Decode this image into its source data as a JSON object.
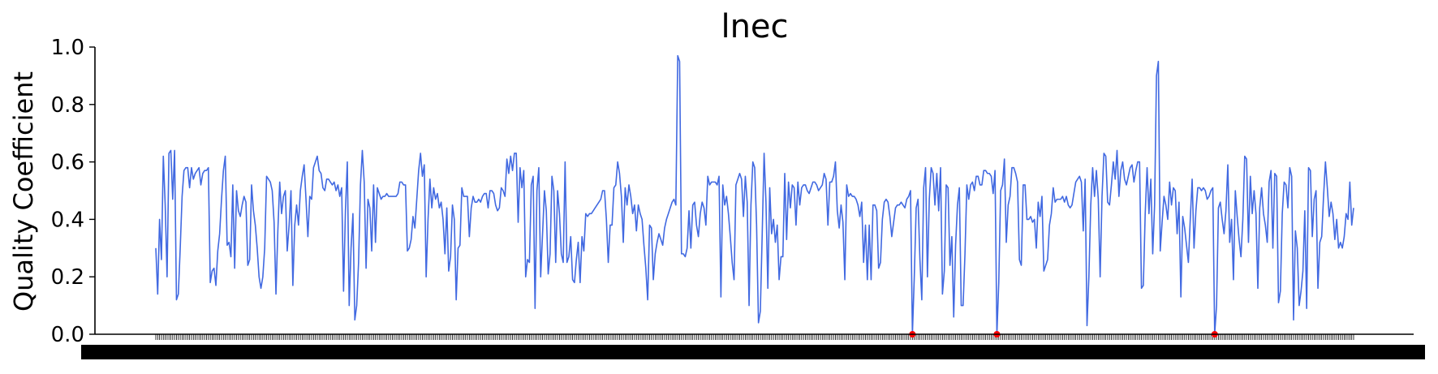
{
  "chart_data": {
    "type": "line",
    "title": "lnec",
    "xlabel": "",
    "ylabel": "Quality Coefficient",
    "ylim": [
      0,
      1
    ],
    "yticks": [
      "0.0",
      "0.2",
      "0.4",
      "0.6",
      "0.8",
      "1.0"
    ],
    "grid": false,
    "legend": "none",
    "line_color": "#4169e1",
    "marker_color": "#ff0000",
    "y": [
      0.3,
      0.14,
      0.4,
      0.26,
      0.62,
      0.45,
      0.2,
      0.63,
      0.64,
      0.47,
      0.64,
      0.12,
      0.14,
      0.3,
      0.48,
      0.57,
      0.58,
      0.58,
      0.51,
      0.58,
      0.54,
      0.56,
      0.57,
      0.58,
      0.52,
      0.56,
      0.57,
      0.57,
      0.58,
      0.18,
      0.22,
      0.23,
      0.17,
      0.29,
      0.35,
      0.47,
      0.57,
      0.62,
      0.31,
      0.32,
      0.27,
      0.52,
      0.23,
      0.5,
      0.43,
      0.41,
      0.45,
      0.48,
      0.46,
      0.24,
      0.26,
      0.52,
      0.43,
      0.38,
      0.3,
      0.2,
      0.16,
      0.2,
      0.3,
      0.55,
      0.54,
      0.53,
      0.5,
      0.39,
      0.14,
      0.36,
      0.53,
      0.42,
      0.48,
      0.5,
      0.29,
      0.38,
      0.5,
      0.17,
      0.38,
      0.45,
      0.38,
      0.5,
      0.55,
      0.59,
      0.47,
      0.34,
      0.48,
      0.47,
      0.58,
      0.6,
      0.62,
      0.57,
      0.56,
      0.51,
      0.5,
      0.54,
      0.54,
      0.53,
      0.52,
      0.53,
      0.5,
      0.52,
      0.48,
      0.51,
      0.15,
      0.43,
      0.6,
      0.1,
      0.3,
      0.42,
      0.05,
      0.1,
      0.25,
      0.52,
      0.64,
      0.53,
      0.23,
      0.47,
      0.44,
      0.29,
      0.52,
      0.32,
      0.51,
      0.49,
      0.47,
      0.48,
      0.48,
      0.49,
      0.48,
      0.48,
      0.48,
      0.48,
      0.48,
      0.49,
      0.53,
      0.53,
      0.52,
      0.52,
      0.29,
      0.3,
      0.33,
      0.41,
      0.37,
      0.47,
      0.57,
      0.63,
      0.55,
      0.59,
      0.2,
      0.4,
      0.54,
      0.44,
      0.51,
      0.47,
      0.49,
      0.44,
      0.46,
      0.4,
      0.28,
      0.44,
      0.22,
      0.27,
      0.45,
      0.4,
      0.12,
      0.3,
      0.31,
      0.51,
      0.48,
      0.48,
      0.48,
      0.34,
      0.44,
      0.48,
      0.46,
      0.46,
      0.47,
      0.46,
      0.48,
      0.49,
      0.49,
      0.44,
      0.5,
      0.5,
      0.49,
      0.45,
      0.43,
      0.44,
      0.51,
      0.5,
      0.48,
      0.61,
      0.56,
      0.62,
      0.57,
      0.63,
      0.63,
      0.39,
      0.58,
      0.51,
      0.57,
      0.2,
      0.26,
      0.25,
      0.52,
      0.55,
      0.09,
      0.5,
      0.58,
      0.2,
      0.35,
      0.5,
      0.43,
      0.21,
      0.28,
      0.55,
      0.5,
      0.25,
      0.5,
      0.42,
      0.28,
      0.25,
      0.6,
      0.25,
      0.27,
      0.34,
      0.19,
      0.18,
      0.26,
      0.32,
      0.18,
      0.34,
      0.29,
      0.42,
      0.41,
      0.42,
      0.42,
      0.43,
      0.44,
      0.45,
      0.46,
      0.47,
      0.5,
      0.5,
      0.4,
      0.25,
      0.38,
      0.38,
      0.51,
      0.52,
      0.6,
      0.56,
      0.48,
      0.32,
      0.51,
      0.45,
      0.52,
      0.48,
      0.42,
      0.45,
      0.36,
      0.45,
      0.42,
      0.4,
      0.31,
      0.23,
      0.12,
      0.38,
      0.37,
      0.19,
      0.28,
      0.32,
      0.35,
      0.33,
      0.31,
      0.37,
      0.4,
      0.42,
      0.44,
      0.46,
      0.47,
      0.45,
      0.97,
      0.95,
      0.28,
      0.28,
      0.27,
      0.3,
      0.43,
      0.3,
      0.45,
      0.46,
      0.38,
      0.34,
      0.42,
      0.46,
      0.44,
      0.38,
      0.55,
      0.52,
      0.53,
      0.53,
      0.53,
      0.52,
      0.55,
      0.13,
      0.52,
      0.45,
      0.48,
      0.42,
      0.34,
      0.25,
      0.19,
      0.52,
      0.54,
      0.56,
      0.54,
      0.41,
      0.55,
      0.46,
      0.1,
      0.45,
      0.6,
      0.58,
      0.38,
      0.04,
      0.08,
      0.35,
      0.63,
      0.46,
      0.16,
      0.51,
      0.35,
      0.4,
      0.32,
      0.38,
      0.19,
      0.27,
      0.27,
      0.56,
      0.33,
      0.53,
      0.44,
      0.52,
      0.51,
      0.38,
      0.53,
      0.45,
      0.51,
      0.52,
      0.52,
      0.5,
      0.49,
      0.51,
      0.53,
      0.53,
      0.52,
      0.5,
      0.51,
      0.52,
      0.56,
      0.54,
      0.38,
      0.53,
      0.53,
      0.55,
      0.6,
      0.43,
      0.37,
      0.45,
      0.39,
      0.19,
      0.52,
      0.48,
      0.49,
      0.48,
      0.48,
      0.47,
      0.45,
      0.41,
      0.46,
      0.25,
      0.38,
      0.19,
      0.38,
      0.19,
      0.45,
      0.45,
      0.43,
      0.23,
      0.25,
      0.4,
      0.46,
      0.47,
      0.46,
      0.41,
      0.34,
      0.39,
      0.44,
      0.45,
      0.45,
      0.46,
      0.45,
      0.44,
      0.47,
      0.48,
      0.5,
      0.0,
      0.2,
      0.44,
      0.47,
      0.26,
      0.12,
      0.51,
      0.58,
      0.2,
      0.47,
      0.58,
      0.56,
      0.45,
      0.56,
      0.43,
      0.58,
      0.14,
      0.22,
      0.52,
      0.51,
      0.24,
      0.34,
      0.06,
      0.31,
      0.45,
      0.51,
      0.1,
      0.1,
      0.28,
      0.52,
      0.47,
      0.52,
      0.53,
      0.5,
      0.55,
      0.55,
      0.52,
      0.52,
      0.57,
      0.57,
      0.56,
      0.56,
      0.55,
      0.49,
      0.57,
      0.0,
      0.18,
      0.5,
      0.52,
      0.61,
      0.32,
      0.45,
      0.48,
      0.58,
      0.58,
      0.56,
      0.53,
      0.26,
      0.24,
      0.52,
      0.52,
      0.4,
      0.4,
      0.41,
      0.39,
      0.4,
      0.3,
      0.46,
      0.41,
      0.48,
      0.22,
      0.24,
      0.26,
      0.38,
      0.42,
      0.51,
      0.46,
      0.47,
      0.47,
      0.47,
      0.48,
      0.46,
      0.48,
      0.45,
      0.44,
      0.45,
      0.49,
      0.53,
      0.54,
      0.55,
      0.53,
      0.36,
      0.54,
      0.03,
      0.2,
      0.45,
      0.58,
      0.48,
      0.57,
      0.47,
      0.2,
      0.48,
      0.63,
      0.62,
      0.46,
      0.45,
      0.52,
      0.6,
      0.54,
      0.64,
      0.48,
      0.57,
      0.6,
      0.54,
      0.52,
      0.55,
      0.58,
      0.59,
      0.53,
      0.57,
      0.6,
      0.6,
      0.16,
      0.17,
      0.42,
      0.58,
      0.42,
      0.54,
      0.28,
      0.45,
      0.9,
      0.95,
      0.29,
      0.39,
      0.48,
      0.45,
      0.4,
      0.53,
      0.45,
      0.51,
      0.5,
      0.35,
      0.46,
      0.13,
      0.41,
      0.37,
      0.31,
      0.25,
      0.4,
      0.54,
      0.3,
      0.43,
      0.51,
      0.51,
      0.5,
      0.51,
      0.5,
      0.47,
      0.48,
      0.5,
      0.51,
      0.0,
      0.1,
      0.44,
      0.46,
      0.4,
      0.35,
      0.43,
      0.59,
      0.32,
      0.4,
      0.19,
      0.5,
      0.41,
      0.33,
      0.27,
      0.4,
      0.62,
      0.61,
      0.32,
      0.55,
      0.42,
      0.5,
      0.42,
      0.16,
      0.44,
      0.51,
      0.42,
      0.38,
      0.32,
      0.53,
      0.57,
      0.3,
      0.56,
      0.55,
      0.11,
      0.15,
      0.42,
      0.53,
      0.52,
      0.44,
      0.58,
      0.55,
      0.05,
      0.36,
      0.3,
      0.1,
      0.15,
      0.22,
      0.43,
      0.09,
      0.58,
      0.57,
      0.34,
      0.47,
      0.5,
      0.16,
      0.32,
      0.34,
      0.48,
      0.6,
      0.51,
      0.41,
      0.46,
      0.42,
      0.33,
      0.4,
      0.3,
      0.32,
      0.3,
      0.34,
      0.42,
      0.4,
      0.53,
      0.38,
      0.44
    ],
    "zero_markers": true
  }
}
